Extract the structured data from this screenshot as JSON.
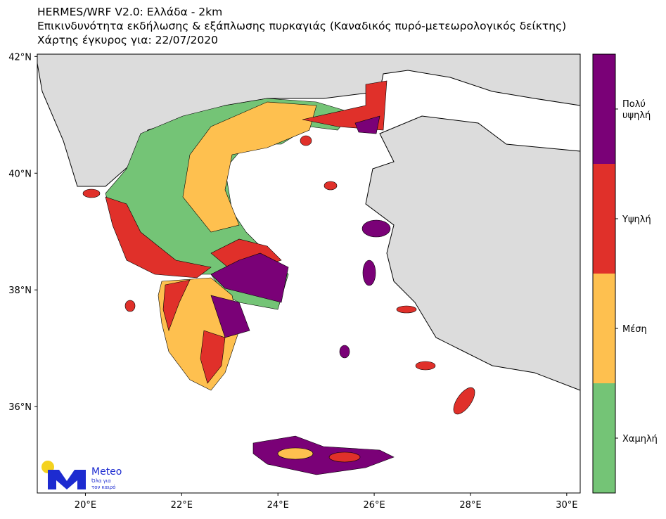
{
  "map": {
    "title_lines": [
      "HERMES/WRF V2.0: Ελλάδα - 2km",
      "Επικινδυνότητα εκδήλωσης & εξάπλωσης πυρκαγιάς (Καναδικός πυρό-μετεωρολογικός δείκτης)",
      "Χάρτης έγκυρος για: 22/07/2020"
    ],
    "xlim": [
      19,
      30.28
    ],
    "ylim": [
      34.52,
      42.04
    ],
    "xticks": [
      {
        "value": 20,
        "label": "20°E"
      },
      {
        "value": 22,
        "label": "22°E"
      },
      {
        "value": 24,
        "label": "24°E"
      },
      {
        "value": 26,
        "label": "26°E"
      },
      {
        "value": 28,
        "label": "28°E"
      },
      {
        "value": 30,
        "label": "30°E"
      }
    ],
    "yticks": [
      {
        "value": 36,
        "label": "36°N"
      },
      {
        "value": 38,
        "label": "38°N"
      },
      {
        "value": 40,
        "label": "40°N"
      },
      {
        "value": 42,
        "label": "42°N"
      }
    ],
    "legend": [
      {
        "label": [
          "Πολύ",
          "υψηλή"
        ],
        "color": "#7a0177"
      },
      {
        "label": [
          "Υψηλή"
        ],
        "color": "#e0302a"
      },
      {
        "label": [
          "Μέση"
        ],
        "color": "#fec04f"
      },
      {
        "label": [
          "Χαμηλή"
        ],
        "color": "#74c476"
      }
    ],
    "logo": {
      "name": "Meteo",
      "tagline": [
        "Όλα για",
        "τον καιρό"
      ]
    }
  }
}
